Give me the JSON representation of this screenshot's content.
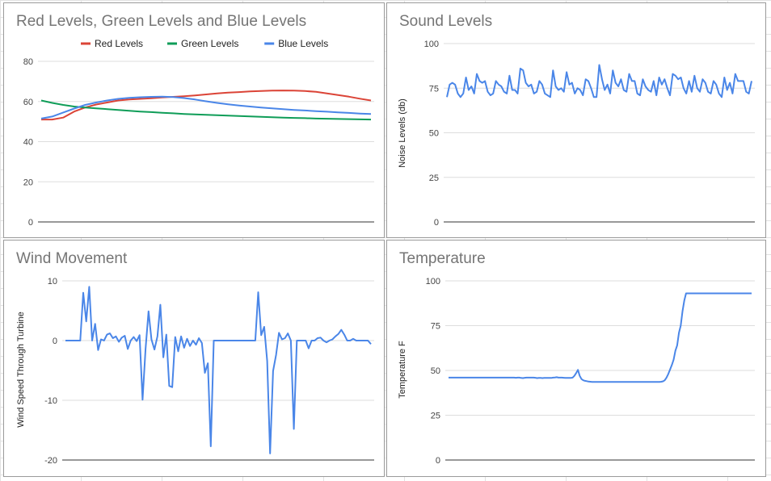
{
  "chart_data": [
    {
      "id": "colors",
      "type": "line",
      "title": "Red Levels, Green Levels and Blue Levels",
      "ylabel": "",
      "ylim": [
        0,
        80
      ],
      "yticks": [
        0,
        20,
        40,
        60,
        80
      ],
      "legend": "top",
      "grid": true,
      "series": [
        {
          "name": "Red Levels",
          "color": "#db4437",
          "values": [
            51,
            51,
            52,
            55,
            57,
            58.5,
            59.5,
            60.5,
            61,
            61.3,
            61.6,
            62,
            62.3,
            62.6,
            63,
            63.5,
            64,
            64.4,
            64.7,
            65,
            65.2,
            65.4,
            65.5,
            65.4,
            65.2,
            64.8,
            64,
            63.2,
            62.4,
            61.4,
            60.5
          ]
        },
        {
          "name": "Green Levels",
          "color": "#0f9d58",
          "values": [
            60.5,
            59.3,
            58.3,
            57.5,
            57,
            56.6,
            56.2,
            55.8,
            55.4,
            55,
            54.7,
            54.4,
            54.1,
            53.8,
            53.6,
            53.4,
            53.2,
            53,
            52.8,
            52.6,
            52.4,
            52.2,
            52,
            51.8,
            51.7,
            51.5,
            51.4,
            51.3,
            51.2,
            51.1,
            51
          ]
        },
        {
          "name": "Blue Levels",
          "color": "#4a86e8",
          "values": [
            51.5,
            52.5,
            54.5,
            56.5,
            58.3,
            59.5,
            60.5,
            61.3,
            61.8,
            62.1,
            62.3,
            62.4,
            62.2,
            61.7,
            61,
            60.1,
            59.3,
            58.6,
            58,
            57.5,
            57,
            56.6,
            56.2,
            55.8,
            55.5,
            55.2,
            54.9,
            54.6,
            54.3,
            54,
            53.8
          ]
        }
      ]
    },
    {
      "id": "sound",
      "type": "line",
      "title": "Sound Levels",
      "ylabel": "Noise Levels (db)",
      "ylim": [
        0,
        100
      ],
      "yticks": [
        0,
        25,
        50,
        75,
        100
      ],
      "grid": true,
      "series": [
        {
          "name": "",
          "color": "#4a86e8",
          "values": [
            70,
            77,
            78,
            77,
            72,
            70,
            72,
            81,
            74,
            76,
            72,
            83,
            79,
            78,
            79,
            73,
            71,
            72,
            79,
            77,
            76,
            73,
            72,
            82,
            74,
            74,
            72,
            86,
            85,
            78,
            76,
            77,
            72,
            73,
            79,
            77,
            72,
            71,
            70,
            85,
            76,
            74,
            75,
            73,
            84,
            77,
            78,
            72,
            75,
            74,
            71,
            80,
            79,
            75,
            70,
            70,
            88,
            80,
            74,
            77,
            72,
            85,
            78,
            76,
            80,
            74,
            73,
            83,
            79,
            79,
            72,
            71,
            80,
            76,
            74,
            73,
            79,
            71,
            81,
            77,
            80,
            75,
            71,
            83,
            82,
            80,
            81,
            75,
            72,
            79,
            73,
            82,
            75,
            73,
            80,
            78,
            73,
            72,
            79,
            77,
            72,
            70,
            81,
            74,
            78,
            72,
            83,
            79,
            79,
            79,
            73,
            72,
            79
          ]
        }
      ]
    },
    {
      "id": "wind",
      "type": "line",
      "title": "Wind Movement",
      "ylabel": "Wind Speed Through Turbine",
      "ylim": [
        -20,
        10
      ],
      "yticks": [
        -20,
        -10,
        0,
        10
      ],
      "grid": true,
      "series": [
        {
          "name": "",
          "color": "#4a86e8",
          "values": [
            0,
            0,
            0,
            0,
            0,
            0,
            8,
            3.2,
            9,
            0,
            2.8,
            -1.6,
            0.2,
            0,
            1,
            1.2,
            0.4,
            0.7,
            -0.2,
            0.5,
            0.8,
            -1.4,
            0,
            0.6,
            -0.1,
            0.9,
            -9.9,
            -1.4,
            4.9,
            0.2,
            -1.5,
            0.7,
            6,
            -2.8,
            1,
            -7.6,
            -7.8,
            0.6,
            -1.8,
            0.7,
            -1.2,
            0.3,
            -0.9,
            0,
            -0.7,
            0.4,
            -0.4,
            -5.4,
            -3.8,
            -17.7,
            0,
            0,
            0,
            0,
            0,
            0,
            0,
            0,
            0,
            0,
            0,
            0,
            0,
            0,
            0,
            8.1,
            0.9,
            2.3,
            -3.4,
            -18.9,
            -5.1,
            -2.4,
            1.3,
            0.2,
            0.4,
            1.2,
            0,
            -14.8,
            0,
            0,
            0,
            0,
            -1.3,
            0,
            0,
            0.4,
            0.5,
            0,
            -0.3,
            0,
            0.2,
            0.7,
            1.1,
            1.8,
            1,
            0,
            0,
            0.3,
            0,
            0,
            0,
            0,
            0,
            -0.6
          ]
        }
      ]
    },
    {
      "id": "temperature",
      "type": "line",
      "title": "Temperature",
      "ylabel": "Temperature F",
      "ylim": [
        0,
        100
      ],
      "yticks": [
        0,
        25,
        50,
        75,
        100
      ],
      "grid": true,
      "series": [
        {
          "name": "",
          "color": "#4a86e8",
          "values": [
            46,
            46,
            46,
            46,
            46,
            46,
            46,
            46,
            46,
            46,
            46,
            46,
            46,
            46,
            46,
            46,
            46,
            46,
            46,
            46,
            46,
            46,
            46,
            46,
            46,
            46,
            46,
            46,
            46,
            46,
            46,
            46,
            46,
            46,
            46,
            46,
            46,
            46,
            45.9,
            46,
            46,
            45.8,
            45.7,
            45.9,
            46,
            46,
            46,
            46,
            46,
            45.9,
            45.7,
            45.8,
            45.8,
            45.7,
            45.8,
            45.8,
            45.8,
            45.8,
            45.8,
            46,
            46.1,
            46.2,
            46,
            46,
            46,
            45.9,
            45.8,
            45.8,
            45.8,
            45.8,
            46,
            47,
            48.5,
            50.3,
            47,
            45.2,
            44.5,
            44.2,
            44,
            43.8,
            43.7,
            43.6,
            43.6,
            43.6,
            43.6,
            43.6,
            43.6,
            43.6,
            43.6,
            43.6,
            43.6,
            43.6,
            43.6,
            43.6,
            43.6,
            43.6,
            43.6,
            43.6,
            43.6,
            43.6,
            43.6,
            43.6,
            43.6,
            43.6,
            43.6,
            43.6,
            43.6,
            43.6,
            43.6,
            43.6,
            43.6,
            43.6,
            43.6,
            43.6,
            43.6,
            43.6,
            43.6,
            43.6,
            43.6,
            43.6,
            43.7,
            43.9,
            44.5,
            46,
            48,
            50.5,
            53,
            56,
            61,
            64,
            71,
            75,
            83,
            89,
            93,
            93,
            93,
            93,
            93,
            93,
            93,
            93,
            93,
            93,
            93,
            93,
            93,
            93,
            93,
            93,
            93,
            93,
            93,
            93,
            93,
            93,
            93,
            93,
            93,
            93,
            93,
            93,
            93,
            93,
            93,
            93,
            93,
            93,
            93,
            93,
            93,
            93
          ]
        }
      ]
    }
  ]
}
